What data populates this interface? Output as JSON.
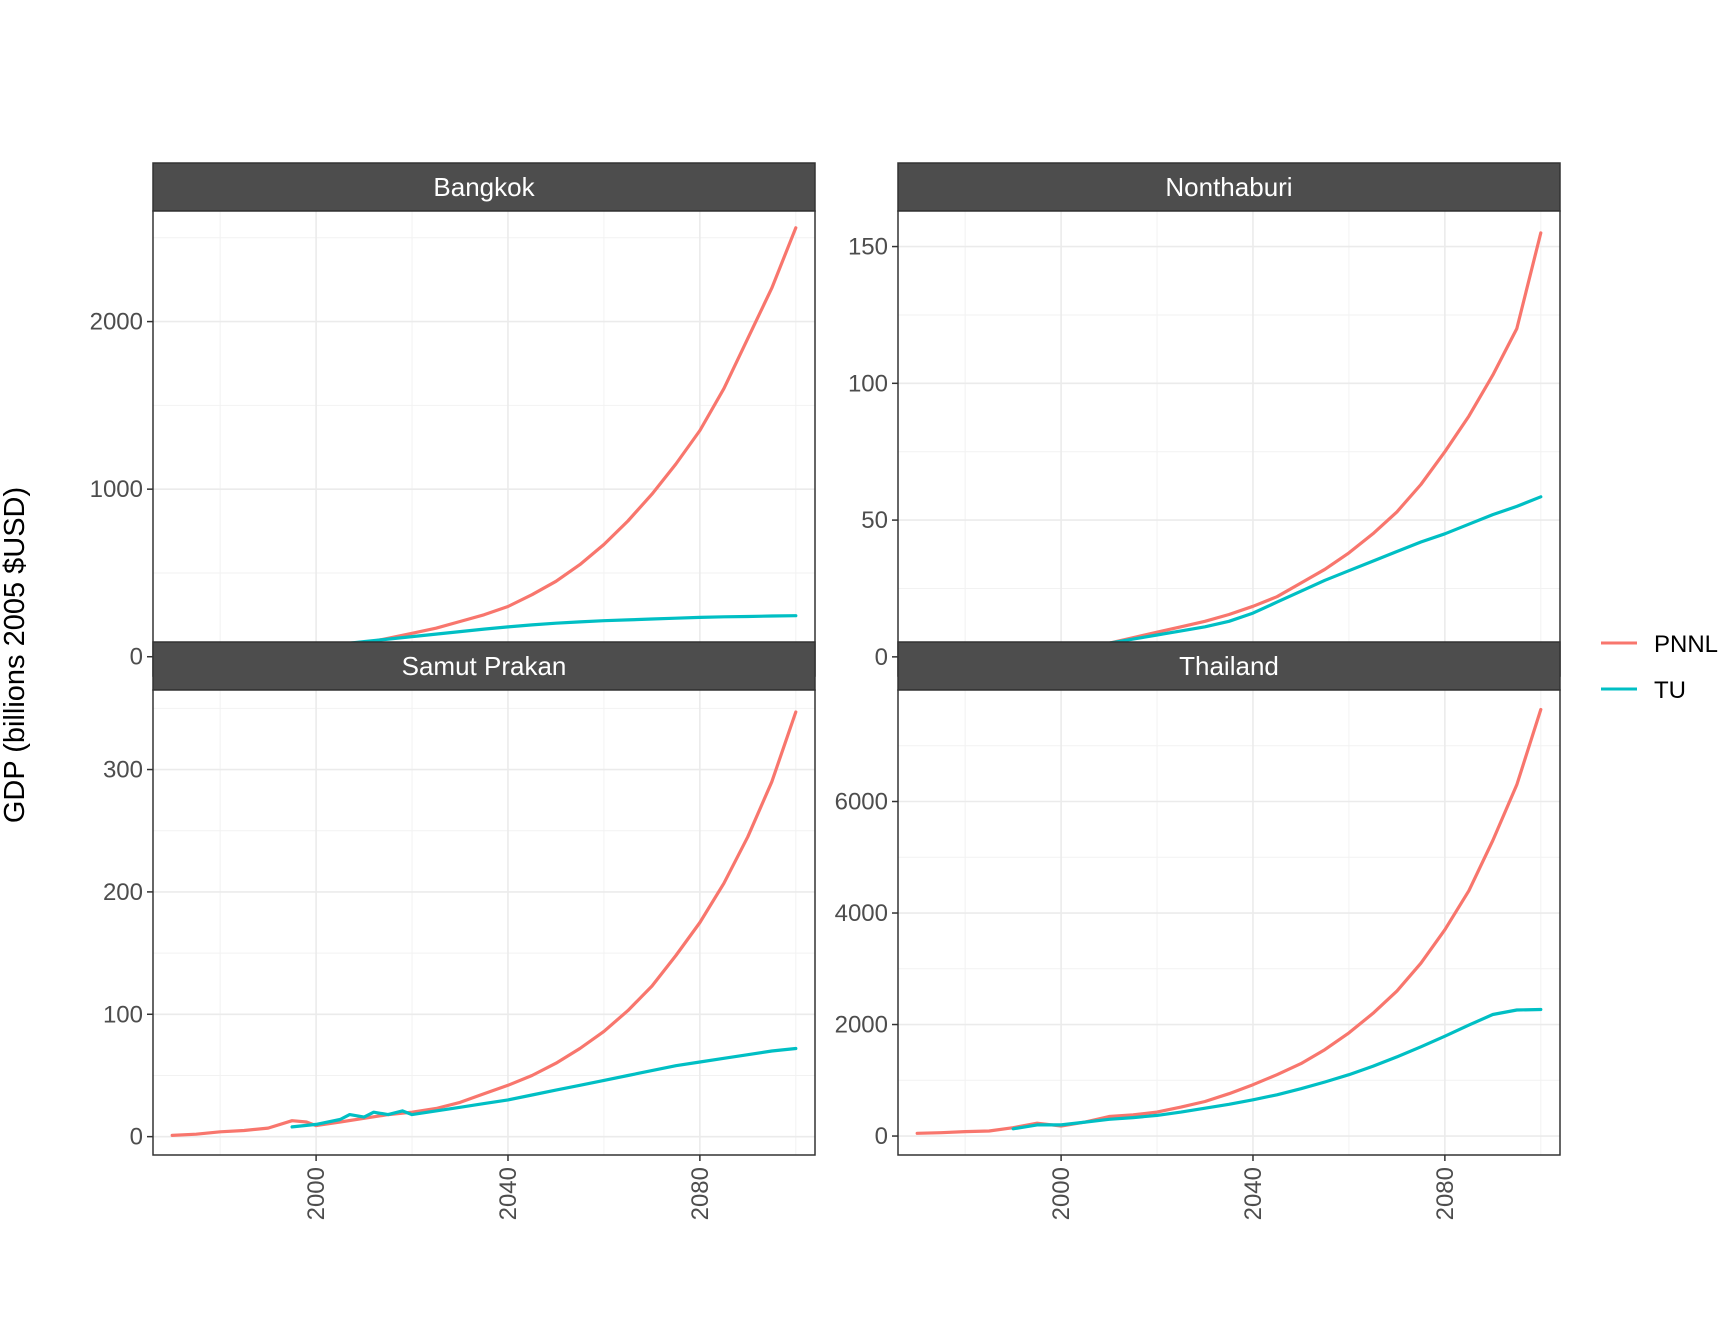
{
  "ylabel": "GDP (billions 2005 $USD)",
  "legend": {
    "title": "",
    "entries": [
      {
        "name": "PNNL",
        "color": "#F8766D"
      },
      {
        "name": "TU",
        "color": "#00BFC4"
      }
    ]
  },
  "chart_data": [
    {
      "type": "line",
      "title": "Bangkok",
      "xlabel": "",
      "ylabel": "GDP (billions 2005 $USD)",
      "xlim": [
        1966,
        2104
      ],
      "ylim": [
        -115,
        2660
      ],
      "xticks": [
        2000,
        2040,
        2080
      ],
      "yticks": [
        0,
        1000,
        2000
      ],
      "grid": true,
      "series": [
        {
          "name": "PNNL",
          "color": "#F8766D",
          "x": [
            1970,
            1975,
            1980,
            1985,
            1990,
            1995,
            1998,
            2000,
            2005,
            2010,
            2015,
            2020,
            2025,
            2030,
            2035,
            2040,
            2045,
            2050,
            2055,
            2060,
            2065,
            2070,
            2075,
            2080,
            2085,
            2090,
            2095,
            2100
          ],
          "y": [
            8,
            10,
            15,
            20,
            30,
            60,
            35,
            40,
            55,
            80,
            110,
            140,
            170,
            210,
            250,
            300,
            370,
            450,
            550,
            670,
            810,
            970,
            1150,
            1350,
            1600,
            1900,
            2200,
            2560
          ]
        },
        {
          "name": "TU",
          "color": "#00BFC4",
          "x": [
            1995,
            1998,
            2000,
            2005,
            2010,
            2015,
            2020,
            2025,
            2030,
            2035,
            2040,
            2045,
            2050,
            2055,
            2060,
            2065,
            2070,
            2075,
            2080,
            2085,
            2090,
            2095,
            2100
          ],
          "y": [
            65,
            55,
            60,
            75,
            90,
            105,
            120,
            135,
            150,
            165,
            178,
            190,
            200,
            208,
            215,
            220,
            225,
            230,
            235,
            238,
            240,
            243,
            245
          ]
        }
      ]
    },
    {
      "type": "line",
      "title": "Nonthaburi",
      "xlabel": "",
      "ylabel": "GDP (billions 2005 $USD)",
      "xlim": [
        1966,
        2104
      ],
      "ylim": [
        -7,
        163
      ],
      "xticks": [
        2000,
        2040,
        2080
      ],
      "yticks": [
        0,
        50,
        100,
        150
      ],
      "grid": true,
      "series": [
        {
          "name": "PNNL",
          "color": "#F8766D",
          "x": [
            1970,
            1975,
            1980,
            1985,
            1990,
            1995,
            2000,
            2005,
            2010,
            2015,
            2020,
            2025,
            2030,
            2035,
            2040,
            2045,
            2050,
            2055,
            2060,
            2065,
            2070,
            2075,
            2080,
            2085,
            2090,
            2095,
            2100
          ],
          "y": [
            0.5,
            0.7,
            1,
            1.3,
            2,
            3,
            2.5,
            4,
            5,
            7,
            9,
            11,
            13,
            15.5,
            18.5,
            22,
            27,
            32,
            38,
            45,
            53,
            63,
            75,
            88,
            103,
            120,
            155
          ]
        },
        {
          "name": "TU",
          "color": "#00BFC4",
          "x": [
            1995,
            2000,
            2005,
            2010,
            2015,
            2020,
            2025,
            2030,
            2035,
            2040,
            2045,
            2050,
            2055,
            2060,
            2065,
            2070,
            2075,
            2080,
            2085,
            2090,
            2095,
            2100
          ],
          "y": [
            2.5,
            2.8,
            3.5,
            5,
            6.5,
            8,
            9.5,
            11,
            13,
            16,
            20,
            24,
            28,
            31.5,
            35,
            38.5,
            42,
            45,
            48.5,
            52,
            55,
            58.5
          ]
        }
      ]
    },
    {
      "type": "line",
      "title": "Samut Prakan",
      "xlabel": "",
      "ylabel": "GDP (billions 2005 $USD)",
      "xlim": [
        1966,
        2104
      ],
      "ylim": [
        -15,
        365
      ],
      "xticks": [
        2000,
        2040,
        2080
      ],
      "yticks": [
        0,
        100,
        200,
        300
      ],
      "grid": true,
      "series": [
        {
          "name": "PNNL",
          "color": "#F8766D",
          "x": [
            1970,
            1975,
            1980,
            1985,
            1990,
            1995,
            1998,
            2000,
            2005,
            2010,
            2015,
            2020,
            2025,
            2030,
            2035,
            2040,
            2045,
            2050,
            2055,
            2060,
            2065,
            2070,
            2075,
            2080,
            2085,
            2090,
            2095,
            2100
          ],
          "y": [
            1,
            2,
            4,
            5,
            7,
            13,
            12,
            9,
            12,
            15,
            18,
            20,
            23,
            28,
            35,
            42,
            50,
            60,
            72,
            86,
            103,
            123,
            148,
            175,
            207,
            245,
            290,
            347
          ]
        },
        {
          "name": "TU",
          "color": "#00BFC4",
          "x": [
            1995,
            2000,
            2005,
            2007,
            2010,
            2012,
            2015,
            2018,
            2020,
            2025,
            2030,
            2035,
            2040,
            2045,
            2050,
            2055,
            2060,
            2065,
            2070,
            2075,
            2080,
            2085,
            2090,
            2095,
            2100
          ],
          "y": [
            8,
            10,
            14,
            18,
            16,
            20,
            18,
            21,
            18,
            21,
            24,
            27,
            30,
            34,
            38,
            42,
            46,
            50,
            54,
            58,
            61,
            64,
            67,
            70,
            72
          ]
        }
      ]
    },
    {
      "type": "line",
      "title": "Thailand",
      "xlabel": "",
      "ylabel": "GDP (billions 2005 $USD)",
      "xlim": [
        1966,
        2104
      ],
      "ylim": [
        -340,
        8000
      ],
      "xticks": [
        2000,
        2040,
        2080
      ],
      "yticks": [
        0,
        2000,
        4000,
        6000
      ],
      "grid": true,
      "series": [
        {
          "name": "PNNL",
          "color": "#F8766D",
          "x": [
            1970,
            1975,
            1980,
            1985,
            1990,
            1995,
            2000,
            2005,
            2010,
            2015,
            2020,
            2025,
            2030,
            2035,
            2040,
            2045,
            2050,
            2055,
            2060,
            2065,
            2070,
            2075,
            2080,
            2085,
            2090,
            2095,
            2100
          ],
          "y": [
            50,
            60,
            80,
            90,
            150,
            230,
            180,
            250,
            350,
            380,
            430,
            520,
            620,
            760,
            920,
            1100,
            1300,
            1550,
            1850,
            2200,
            2600,
            3100,
            3700,
            4400,
            5300,
            6300,
            7650
          ]
        },
        {
          "name": "TU",
          "color": "#00BFC4",
          "x": [
            1990,
            1995,
            2000,
            2005,
            2010,
            2015,
            2020,
            2025,
            2030,
            2035,
            2040,
            2045,
            2050,
            2055,
            2060,
            2065,
            2070,
            2075,
            2080,
            2085,
            2090,
            2095,
            2100
          ],
          "y": [
            130,
            200,
            200,
            250,
            300,
            330,
            370,
            430,
            500,
            570,
            650,
            740,
            850,
            970,
            1100,
            1250,
            1420,
            1600,
            1790,
            1990,
            2180,
            2260,
            2270
          ]
        }
      ]
    }
  ]
}
